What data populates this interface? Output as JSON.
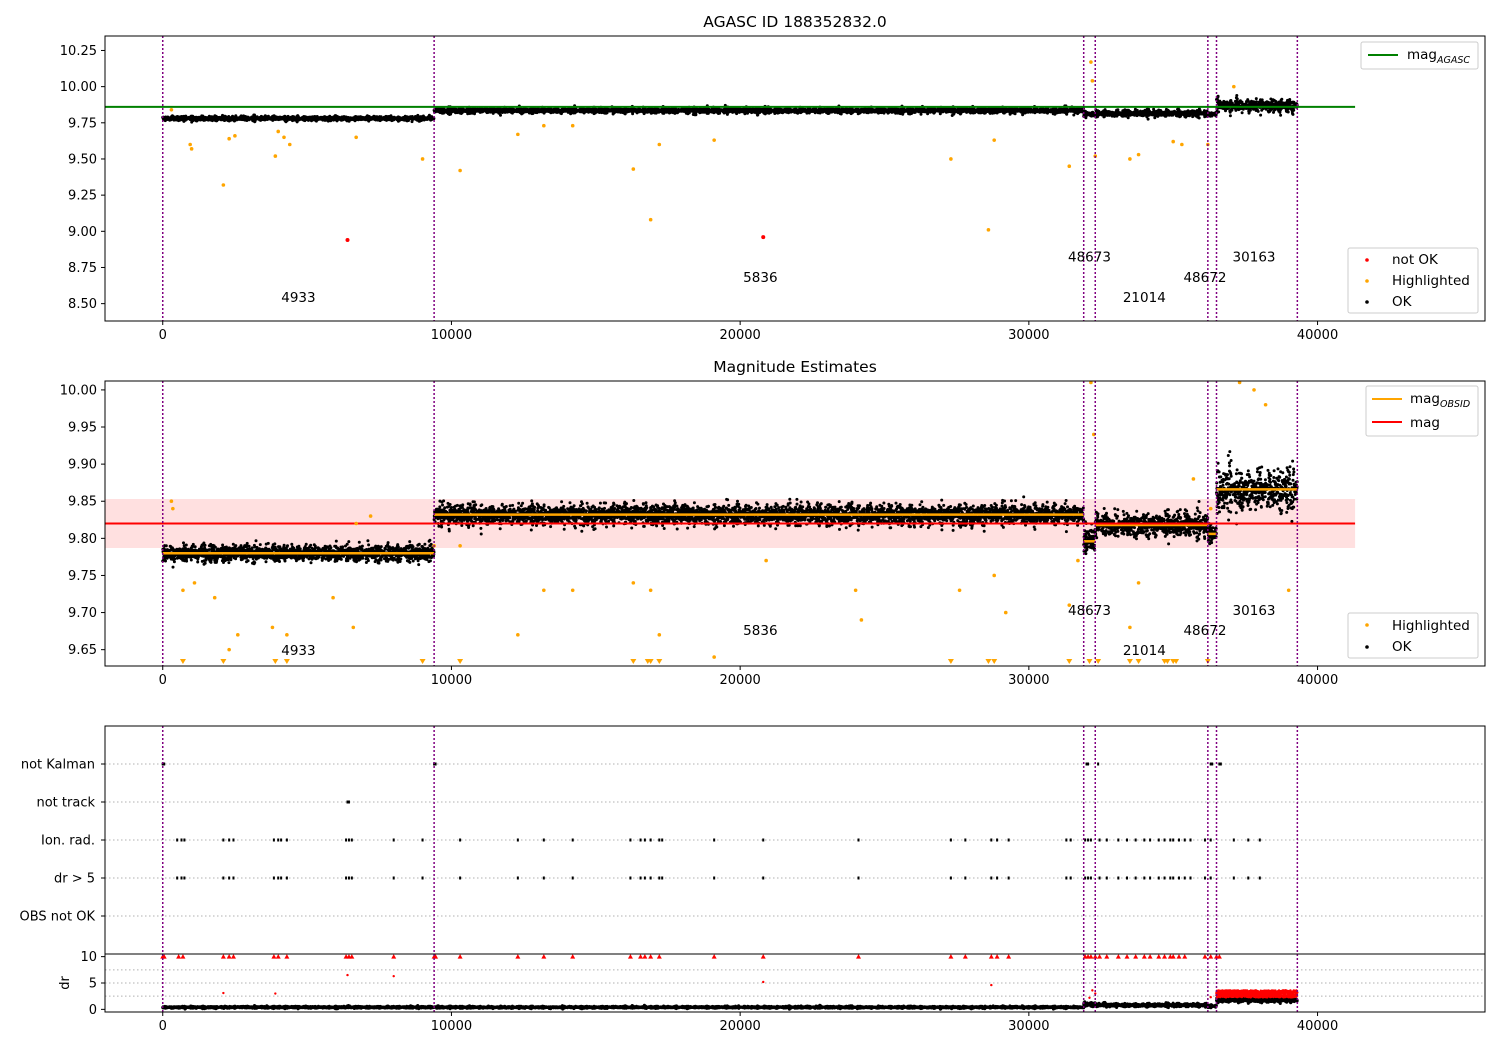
{
  "chart_data": [
    {
      "type": "scatter",
      "title": "AGASC ID 188352832.0",
      "xlabel": "",
      "ylabel": "",
      "xlim": [
        -2000,
        45800
      ],
      "ylim": [
        8.38,
        10.35
      ],
      "xticks": [
        0,
        10000,
        20000,
        30000,
        40000
      ],
      "yticks": [
        8.5,
        8.75,
        9.0,
        9.25,
        9.5,
        9.75,
        10.0,
        10.25
      ],
      "ytick_labels": [
        "8.50",
        "8.75",
        "9.00",
        "9.25",
        "9.50",
        "9.75",
        "10.00",
        "10.25"
      ],
      "legend_top": {
        "position": "upper right",
        "entries": [
          {
            "label": "mag",
            "subscript": "AGASC",
            "color": "#008000",
            "marker": "line"
          }
        ]
      },
      "legend_bottom": {
        "position": "lower right",
        "entries": [
          {
            "label": "not OK",
            "color": "#ff0000",
            "marker": "dot"
          },
          {
            "label": "Highlighted",
            "color": "#ffa500",
            "marker": "dot"
          },
          {
            "label": "OK",
            "color": "#000000",
            "marker": "dot"
          }
        ]
      },
      "hlines": [
        {
          "name": "mag_AGASC",
          "y": 9.86,
          "x_range": [
            -2000,
            41300
          ],
          "color": "#008000"
        }
      ],
      "vlines": [
        0,
        9400,
        31900,
        32300,
        36200,
        36500,
        39300
      ],
      "obsid_labels": [
        {
          "text": "4933",
          "x": 4700,
          "y": 8.51
        },
        {
          "text": "5836",
          "x": 20700,
          "y": 8.65
        },
        {
          "text": "48673",
          "x": 32100,
          "y": 8.79
        },
        {
          "text": "21014",
          "x": 34000,
          "y": 8.51
        },
        {
          "text": "48672",
          "x": 36100,
          "y": 8.65
        },
        {
          "text": "30163",
          "x": 37800,
          "y": 8.79
        }
      ],
      "segments": [
        {
          "x0": 0,
          "x1": 9400,
          "center": 9.78,
          "spread": 0.025
        },
        {
          "x0": 9400,
          "x1": 31900,
          "center": 9.835,
          "spread": 0.03
        },
        {
          "x0": 31900,
          "x1": 32300,
          "center": 9.81,
          "spread": 0.03
        },
        {
          "x0": 32300,
          "x1": 36200,
          "center": 9.815,
          "spread": 0.035
        },
        {
          "x0": 36200,
          "x1": 36500,
          "center": 9.81,
          "spread": 0.02
        },
        {
          "x0": 36500,
          "x1": 39300,
          "center": 9.87,
          "spread": 0.07
        }
      ],
      "highlighted_points": [
        [
          300,
          9.84
        ],
        [
          950,
          9.6
        ],
        [
          1000,
          9.57
        ],
        [
          2100,
          9.32
        ],
        [
          2300,
          9.64
        ],
        [
          2500,
          9.66
        ],
        [
          3900,
          9.52
        ],
        [
          4000,
          9.69
        ],
        [
          4200,
          9.65
        ],
        [
          4400,
          9.6
        ],
        [
          6700,
          9.65
        ],
        [
          9000,
          9.5
        ],
        [
          10300,
          9.42
        ],
        [
          12300,
          9.67
        ],
        [
          13200,
          9.73
        ],
        [
          14200,
          9.73
        ],
        [
          16300,
          9.43
        ],
        [
          16900,
          9.08
        ],
        [
          17200,
          9.6
        ],
        [
          19100,
          9.63
        ],
        [
          27300,
          9.5
        ],
        [
          28600,
          9.01
        ],
        [
          28800,
          9.63
        ],
        [
          31400,
          9.45
        ],
        [
          32150,
          10.17
        ],
        [
          32200,
          10.04
        ],
        [
          32300,
          9.52
        ],
        [
          33500,
          9.5
        ],
        [
          33800,
          9.53
        ],
        [
          35000,
          9.62
        ],
        [
          35300,
          9.6
        ],
        [
          36200,
          9.6
        ],
        [
          37100,
          10.0
        ]
      ],
      "notok_points": [
        [
          6400,
          8.94
        ],
        [
          20800,
          8.96
        ]
      ]
    },
    {
      "type": "scatter",
      "title": "Magnitude Estimates",
      "xlabel": "",
      "ylabel": "",
      "xlim": [
        -2000,
        45800
      ],
      "ylim": [
        9.628,
        10.012
      ],
      "xticks": [
        0,
        10000,
        20000,
        30000,
        40000
      ],
      "yticks": [
        9.65,
        9.7,
        9.75,
        9.8,
        9.85,
        9.9,
        9.95,
        10.0
      ],
      "ytick_labels": [
        "9.65",
        "9.70",
        "9.75",
        "9.80",
        "9.85",
        "9.90",
        "9.95",
        "10.00"
      ],
      "legend_top": {
        "position": "upper right",
        "entries": [
          {
            "label": "mag",
            "subscript": "OBSID",
            "color": "#ffa500",
            "marker": "line"
          },
          {
            "label": "mag",
            "subscript": "",
            "color": "#ff0000",
            "marker": "line"
          }
        ]
      },
      "legend_bottom": {
        "position": "lower right",
        "entries": [
          {
            "label": "Highlighted",
            "color": "#ffa500",
            "marker": "dot"
          },
          {
            "label": "OK",
            "color": "#000000",
            "marker": "dot"
          }
        ]
      },
      "mag_line": {
        "y": 9.82,
        "band": [
          9.787,
          9.853
        ],
        "x_range": [
          -2000,
          41300
        ],
        "color": "#ff0000"
      },
      "mag_obsid": [
        {
          "x0": 0,
          "x1": 9400,
          "y": 9.78
        },
        {
          "x0": 9400,
          "x1": 31900,
          "y": 9.832
        },
        {
          "x0": 31900,
          "x1": 32300,
          "y": 9.796
        },
        {
          "x0": 32300,
          "x1": 36200,
          "y": 9.818
        },
        {
          "x0": 36200,
          "x1": 36500,
          "y": 9.806
        },
        {
          "x0": 36500,
          "x1": 39300,
          "y": 9.866
        }
      ],
      "segments": [
        {
          "x0": 0,
          "x1": 9400,
          "center": 9.78,
          "spread": 0.018
        },
        {
          "x0": 9400,
          "x1": 31900,
          "center": 9.832,
          "spread": 0.022
        },
        {
          "x0": 31900,
          "x1": 32300,
          "center": 9.8,
          "spread": 0.03
        },
        {
          "x0": 32300,
          "x1": 36200,
          "center": 9.818,
          "spread": 0.025
        },
        {
          "x0": 36200,
          "x1": 36500,
          "center": 9.806,
          "spread": 0.02
        },
        {
          "x0": 36500,
          "x1": 39300,
          "center": 9.866,
          "spread": 0.045
        }
      ],
      "vlines": [
        0,
        9400,
        31900,
        32300,
        36200,
        36500,
        39300
      ],
      "obsid_labels": [
        {
          "text": "4933",
          "x": 4700,
          "y": 9.643
        },
        {
          "text": "5836",
          "x": 20700,
          "y": 9.67
        },
        {
          "text": "48673",
          "x": 32100,
          "y": 9.697
        },
        {
          "text": "21014",
          "x": 34000,
          "y": 9.643
        },
        {
          "text": "48672",
          "x": 36100,
          "y": 9.67
        },
        {
          "text": "30163",
          "x": 37800,
          "y": 9.697
        }
      ],
      "highlighted_points": [
        [
          300,
          9.85
        ],
        [
          350,
          9.84
        ],
        [
          700,
          9.73
        ],
        [
          1100,
          9.74
        ],
        [
          1800,
          9.72
        ],
        [
          2300,
          9.65
        ],
        [
          2600,
          9.67
        ],
        [
          3800,
          9.68
        ],
        [
          4300,
          9.67
        ],
        [
          5900,
          9.72
        ],
        [
          6600,
          9.68
        ],
        [
          6700,
          9.82
        ],
        [
          7200,
          9.83
        ],
        [
          9400,
          9.79
        ],
        [
          10300,
          9.79
        ],
        [
          12300,
          9.67
        ],
        [
          13200,
          9.73
        ],
        [
          14200,
          9.73
        ],
        [
          16300,
          9.74
        ],
        [
          16900,
          9.73
        ],
        [
          17200,
          9.67
        ],
        [
          19100,
          9.64
        ],
        [
          20900,
          9.77
        ],
        [
          24000,
          9.73
        ],
        [
          24200,
          9.69
        ],
        [
          27600,
          9.73
        ],
        [
          28800,
          9.75
        ],
        [
          29200,
          9.7
        ],
        [
          31400,
          9.71
        ],
        [
          31700,
          9.77
        ],
        [
          32150,
          10.01
        ],
        [
          32250,
          9.94
        ],
        [
          33500,
          9.68
        ],
        [
          33800,
          9.74
        ],
        [
          35700,
          9.88
        ],
        [
          36300,
          9.84
        ],
        [
          37300,
          10.01
        ],
        [
          37800,
          10.0
        ],
        [
          38200,
          9.98
        ],
        [
          39000,
          9.73
        ]
      ],
      "arrow_markers_x": [
        700,
        2100,
        3900,
        4300,
        9000,
        10300,
        16300,
        16800,
        16900,
        17200,
        27300,
        28600,
        28800,
        31400,
        32100,
        32400,
        33500,
        33800,
        34700,
        34800,
        35000,
        35100,
        36200
      ]
    },
    {
      "type": "scatter",
      "title": "",
      "xlabel": "",
      "ylabel": "",
      "xlim": [
        -2000,
        45800
      ],
      "categories": [
        "not Kalman",
        "not track",
        "Ion. rad.",
        "dr > 5",
        "OBS not OK"
      ],
      "vlines": [
        0,
        9400,
        31900,
        32300,
        36200,
        36500,
        39300
      ],
      "flags": {
        "not Kalman": [
          0,
          50,
          9400,
          9450,
          32000,
          32050,
          32400,
          36300,
          36350,
          36600,
          36650
        ],
        "not track": [
          6400,
          6450
        ],
        "Ion. rad.": [
          500,
          650,
          750,
          2100,
          2300,
          2450,
          3850,
          4000,
          4100,
          4300,
          6350,
          6450,
          6550,
          8000,
          9000,
          10300,
          12300,
          13200,
          14200,
          16200,
          16550,
          16700,
          16900,
          17200,
          17300,
          19100,
          20800,
          24100,
          27300,
          27800,
          28700,
          28900,
          29300,
          31300,
          31450,
          31950,
          32050,
          32150,
          32450,
          32700,
          33100,
          33400,
          33700,
          34000,
          34200,
          34500,
          34700,
          34900,
          35000,
          35200,
          35400,
          35600,
          36100,
          36300,
          37100,
          37600,
          38000
        ],
        "dr > 5": [
          500,
          650,
          750,
          2100,
          2300,
          2450,
          3850,
          4000,
          4100,
          4300,
          6350,
          6450,
          6550,
          8000,
          9000,
          10300,
          12300,
          13200,
          14200,
          16200,
          16550,
          16700,
          16900,
          17200,
          17300,
          19100,
          20800,
          24100,
          27300,
          27800,
          28700,
          28900,
          29300,
          31300,
          31450,
          31950,
          32050,
          32150,
          32450,
          32700,
          33100,
          33400,
          33700,
          34000,
          34200,
          34500,
          34700,
          34900,
          35000,
          35200,
          35400,
          35600,
          36100,
          36300,
          37100,
          37600,
          38000
        ],
        "OBS not OK": []
      }
    },
    {
      "type": "scatter",
      "title": "",
      "xlabel": "",
      "ylabel": "dr",
      "xlim": [
        -2000,
        45800
      ],
      "ylim": [
        -0.5,
        10.5
      ],
      "xticks": [
        0,
        10000,
        20000,
        30000,
        40000
      ],
      "yticks": [
        0,
        5,
        10
      ],
      "ytick_labels": [
        "0",
        "5",
        "10"
      ],
      "vlines": [
        0,
        9400,
        31900,
        32300,
        36200,
        36500,
        39300
      ],
      "segments": [
        {
          "x0": 0,
          "x1": 9400,
          "center": 0.4,
          "spread": 0.3
        },
        {
          "x0": 9400,
          "x1": 31900,
          "center": 0.4,
          "spread": 0.3
        },
        {
          "x0": 31900,
          "x1": 32300,
          "center": 1.0,
          "spread": 0.6
        },
        {
          "x0": 32300,
          "x1": 36200,
          "center": 0.8,
          "spread": 0.5
        },
        {
          "x0": 36200,
          "x1": 36500,
          "center": 0.6,
          "spread": 0.4
        },
        {
          "x0": 36500,
          "x1": 39300,
          "center": 1.8,
          "spread": 0.7
        }
      ],
      "red_cluster": {
        "x0": 36500,
        "x1": 39300,
        "y0": 2.3,
        "y1": 3.6
      },
      "red_cap_x": [
        0,
        50,
        550,
        700,
        2100,
        2300,
        2450,
        3850,
        4000,
        4300,
        6350,
        6450,
        6550,
        8000,
        9400,
        9450,
        10300,
        12300,
        13200,
        14200,
        16200,
        16550,
        16700,
        16900,
        17200,
        19100,
        20800,
        24100,
        27300,
        27800,
        28700,
        28900,
        29300,
        31950,
        32050,
        32150,
        32300,
        32450,
        32700,
        33100,
        33400,
        33700,
        34000,
        34200,
        34500,
        34700,
        34900,
        35000,
        35200,
        35400,
        36100,
        36300,
        36500,
        36600
      ],
      "red_mid_points": [
        [
          6400,
          6.5
        ],
        [
          8000,
          6.3
        ],
        [
          2100,
          3.1
        ],
        [
          3900,
          3.0
        ],
        [
          20800,
          5.2
        ],
        [
          28700,
          4.6
        ],
        [
          32200,
          3.6
        ],
        [
          32300,
          3.0
        ],
        [
          32100,
          2.2
        ],
        [
          36300,
          2.3
        ]
      ]
    }
  ]
}
